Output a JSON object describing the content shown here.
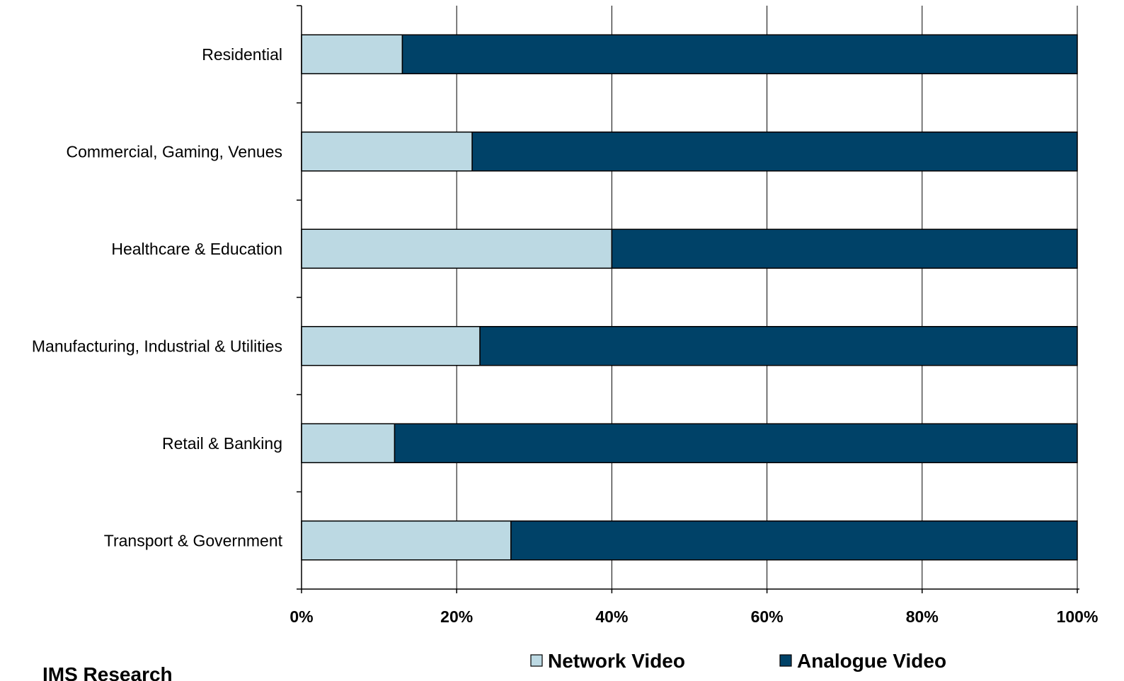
{
  "chart_data": {
    "type": "bar",
    "orientation": "horizontal",
    "stacked": "percent",
    "categories": [
      "Residential",
      "Commercial, Gaming, Venues",
      "Healthcare & Education",
      "Manufacturing, Industrial & Utilities",
      "Retail & Banking",
      "Transport & Government"
    ],
    "series": [
      {
        "name": "Network Video",
        "color": "#bcd9e3",
        "values": [
          13,
          22,
          40,
          23,
          12,
          27
        ]
      },
      {
        "name": "Analogue Video",
        "color": "#004268",
        "values": [
          87,
          78,
          60,
          77,
          88,
          73
        ]
      }
    ],
    "xlim": [
      0,
      100
    ],
    "x_ticks": [
      "0%",
      "20%",
      "40%",
      "60%",
      "80%",
      "100%"
    ],
    "grid": true,
    "legend_position": "bottom",
    "source_text": "IMS Research"
  }
}
